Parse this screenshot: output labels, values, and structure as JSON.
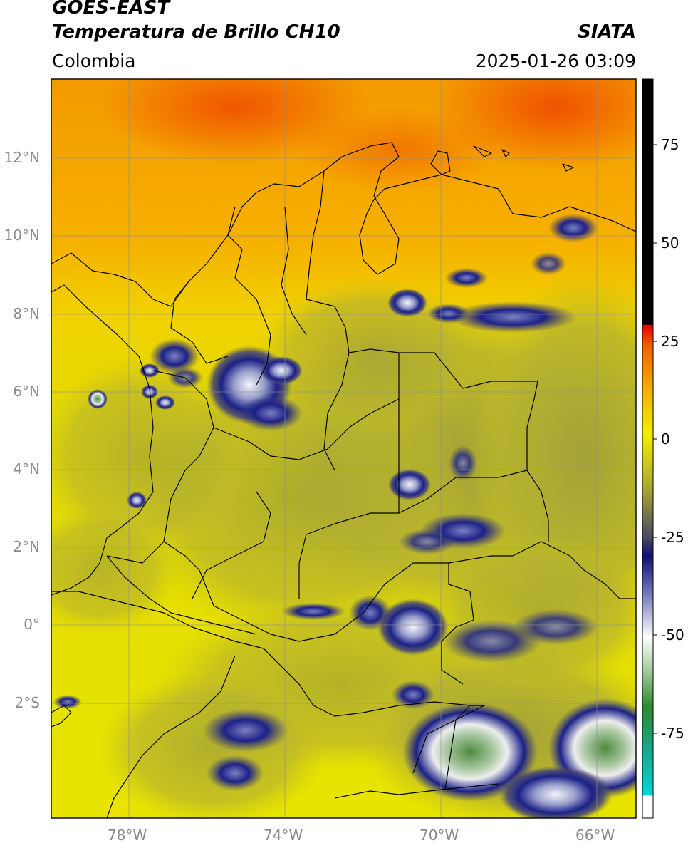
{
  "header": {
    "satellite": "GOES-EAST",
    "product": "Temperatura de Brillo CH10",
    "region": "Colombia",
    "agency": "SIATA",
    "datetime": "2025-01-26 03:09"
  },
  "map": {
    "lat_ticks": [
      "12°N",
      "10°N",
      "8°N",
      "6°N",
      "4°N",
      "2°N",
      "0°",
      "2°S"
    ],
    "lon_ticks": [
      "78°W",
      "74°W",
      "70°W",
      "66°W"
    ],
    "lat_range": [
      -4.9,
      14.0
    ],
    "lon_range": [
      -80.0,
      -65.0
    ],
    "colors": {
      "warm": "#f39a00",
      "hot": "#f25a00",
      "mid": "#e9d800",
      "cloud_low": "#b4b032",
      "cloud_high": "#1b1f86"
    }
  },
  "colorbar": {
    "ticks": [
      "75",
      "50",
      "25",
      "0",
      "-25",
      "-50",
      "-75"
    ],
    "range": [
      -97,
      90
    ]
  }
}
